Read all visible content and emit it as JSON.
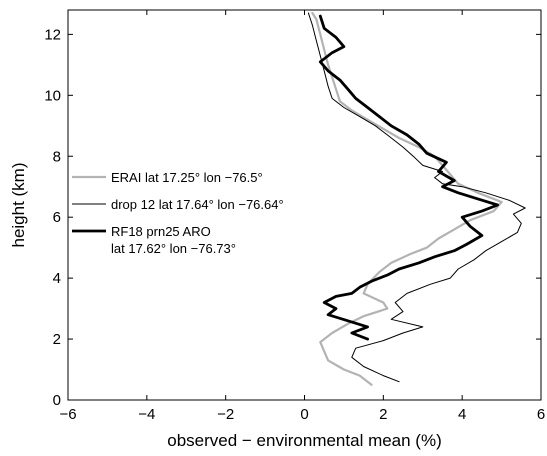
{
  "chart_data": {
    "type": "line",
    "title": "",
    "xlabel": "observed − environmental mean (%)",
    "ylabel": "height (km)",
    "xlim": [
      -6,
      6
    ],
    "ylim": [
      0,
      12.8
    ],
    "xticks": [
      -6,
      -4,
      -2,
      0,
      2,
      4,
      6
    ],
    "xtick_labels": [
      "−6",
      "−4",
      "−2",
      "0",
      "2",
      "4",
      "6"
    ],
    "yticks": [
      0,
      2,
      4,
      6,
      8,
      10,
      12
    ],
    "ytick_labels": [
      "0",
      "2",
      "4",
      "6",
      "8",
      "10",
      "12"
    ],
    "grid": false,
    "legend_position": "middle-left",
    "series": [
      {
        "name": "ERAI lat 17.25° lon −76.5°",
        "color": "#b3b3b3",
        "width": 2.2,
        "points": [
          [
            1.7,
            0.5
          ],
          [
            1.4,
            0.8
          ],
          [
            1.0,
            1.0
          ],
          [
            0.6,
            1.3
          ],
          [
            0.5,
            1.6
          ],
          [
            0.4,
            1.9
          ],
          [
            0.7,
            2.2
          ],
          [
            1.1,
            2.5
          ],
          [
            1.5,
            2.75
          ],
          [
            2.1,
            3.0
          ],
          [
            2.0,
            3.2
          ],
          [
            1.5,
            3.5
          ],
          [
            1.6,
            3.8
          ],
          [
            1.9,
            4.2
          ],
          [
            2.2,
            4.5
          ],
          [
            2.7,
            4.8
          ],
          [
            3.1,
            5.0
          ],
          [
            3.4,
            5.3
          ],
          [
            3.8,
            5.6
          ],
          [
            4.2,
            5.9
          ],
          [
            4.8,
            6.2
          ],
          [
            5.0,
            6.5
          ],
          [
            4.4,
            6.8
          ],
          [
            3.9,
            7.1
          ],
          [
            3.7,
            7.4
          ],
          [
            3.5,
            7.7
          ],
          [
            3.3,
            8.0
          ],
          [
            2.9,
            8.3
          ],
          [
            2.4,
            8.6
          ],
          [
            2.0,
            8.9
          ],
          [
            1.6,
            9.2
          ],
          [
            1.2,
            9.5
          ],
          [
            0.9,
            9.8
          ],
          [
            0.8,
            10.2
          ],
          [
            0.7,
            10.6
          ],
          [
            0.6,
            11.0
          ],
          [
            0.5,
            11.5
          ],
          [
            0.4,
            12.0
          ],
          [
            0.3,
            12.5
          ],
          [
            0.2,
            12.7
          ]
        ]
      },
      {
        "name": "drop 12 lat 17.64° lon −76.64°",
        "color": "#000000",
        "width": 1.0,
        "points": [
          [
            2.4,
            0.6
          ],
          [
            2.0,
            0.8
          ],
          [
            1.5,
            1.1
          ],
          [
            1.2,
            1.4
          ],
          [
            1.3,
            1.7
          ],
          [
            2.0,
            1.95
          ],
          [
            2.5,
            2.2
          ],
          [
            3.0,
            2.4
          ],
          [
            2.2,
            2.65
          ],
          [
            2.5,
            2.9
          ],
          [
            2.3,
            3.2
          ],
          [
            2.6,
            3.5
          ],
          [
            3.2,
            3.8
          ],
          [
            3.7,
            4.0
          ],
          [
            3.9,
            4.3
          ],
          [
            4.3,
            4.6
          ],
          [
            4.6,
            4.9
          ],
          [
            5.0,
            5.2
          ],
          [
            5.4,
            5.5
          ],
          [
            5.5,
            5.8
          ],
          [
            5.3,
            6.1
          ],
          [
            5.6,
            6.3
          ],
          [
            5.2,
            6.55
          ],
          [
            4.6,
            6.8
          ],
          [
            4.0,
            7.0
          ],
          [
            3.5,
            7.1
          ],
          [
            3.3,
            7.3
          ],
          [
            3.5,
            7.5
          ],
          [
            3.0,
            7.7
          ],
          [
            2.8,
            7.95
          ],
          [
            2.5,
            8.3
          ],
          [
            2.1,
            8.7
          ],
          [
            1.8,
            9.0
          ],
          [
            1.4,
            9.3
          ],
          [
            1.0,
            9.6
          ],
          [
            0.7,
            9.9
          ],
          [
            0.6,
            10.3
          ],
          [
            0.5,
            10.8
          ],
          [
            0.4,
            11.3
          ],
          [
            0.3,
            11.8
          ],
          [
            0.2,
            12.3
          ],
          [
            0.1,
            12.7
          ]
        ]
      },
      {
        "name": "RF18 prn25 ARO\nlat 17.62° lon −76.73°",
        "color": "#000000",
        "width": 2.8,
        "points": [
          [
            1.6,
            2.0
          ],
          [
            1.2,
            2.2
          ],
          [
            1.6,
            2.4
          ],
          [
            1.1,
            2.6
          ],
          [
            0.6,
            2.8
          ],
          [
            0.8,
            3.0
          ],
          [
            0.5,
            3.2
          ],
          [
            0.8,
            3.4
          ],
          [
            1.2,
            3.5
          ],
          [
            1.4,
            3.7
          ],
          [
            1.7,
            3.9
          ],
          [
            2.1,
            4.1
          ],
          [
            2.4,
            4.3
          ],
          [
            2.9,
            4.5
          ],
          [
            3.3,
            4.7
          ],
          [
            3.8,
            4.9
          ],
          [
            4.1,
            5.1
          ],
          [
            4.5,
            5.4
          ],
          [
            4.2,
            5.7
          ],
          [
            4.0,
            6.0
          ],
          [
            4.5,
            6.2
          ],
          [
            4.9,
            6.4
          ],
          [
            4.4,
            6.6
          ],
          [
            3.9,
            6.8
          ],
          [
            3.5,
            7.0
          ],
          [
            3.8,
            7.2
          ],
          [
            3.4,
            7.5
          ],
          [
            3.6,
            7.8
          ],
          [
            3.1,
            8.1
          ],
          [
            2.9,
            8.4
          ],
          [
            2.6,
            8.7
          ],
          [
            2.2,
            9.0
          ],
          [
            1.9,
            9.3
          ],
          [
            1.6,
            9.6
          ],
          [
            1.3,
            9.9
          ],
          [
            1.1,
            10.2
          ],
          [
            0.9,
            10.5
          ],
          [
            0.6,
            10.8
          ],
          [
            0.4,
            11.1
          ],
          [
            0.7,
            11.4
          ],
          [
            1.0,
            11.6
          ],
          [
            0.8,
            11.9
          ],
          [
            0.5,
            12.2
          ],
          [
            0.4,
            12.6
          ]
        ]
      }
    ]
  }
}
